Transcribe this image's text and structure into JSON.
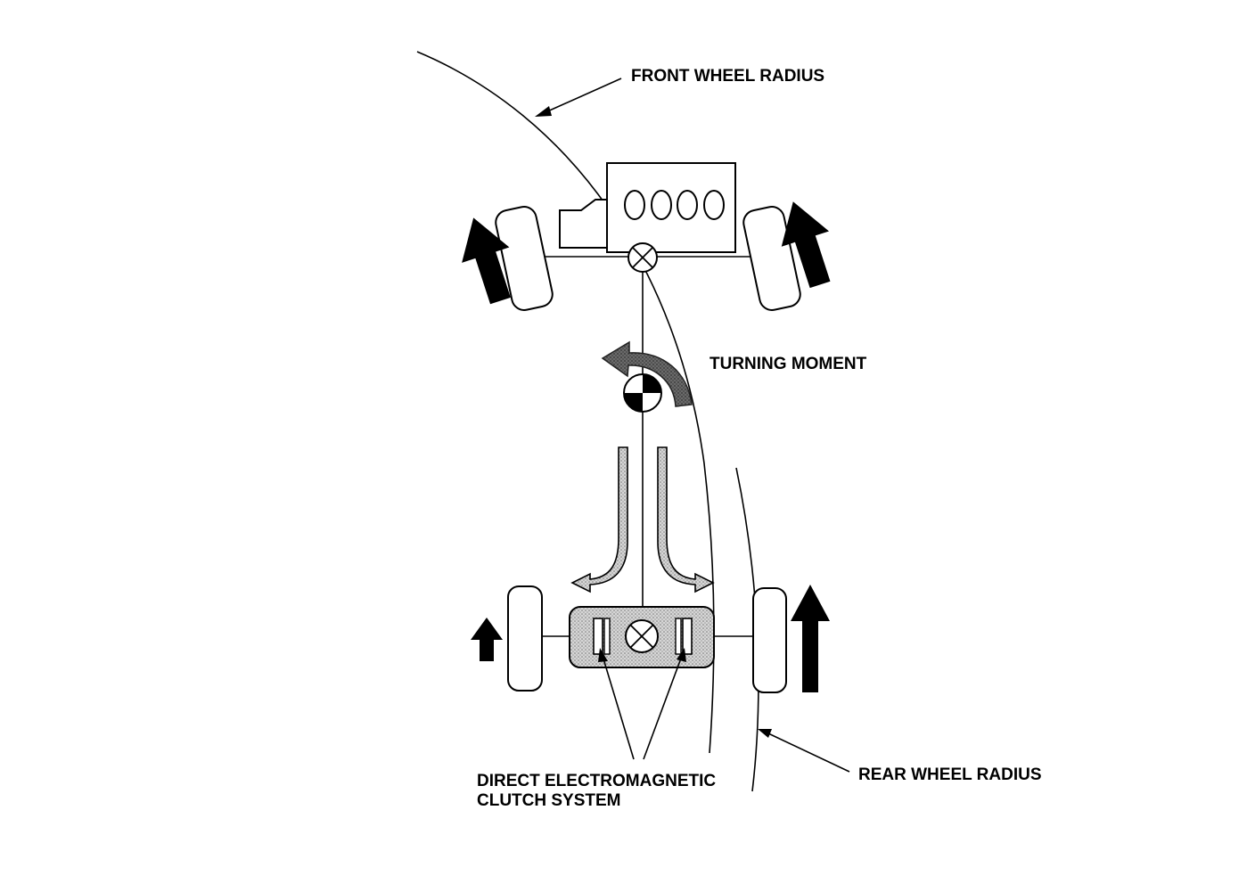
{
  "labels": {
    "front_wheel_radius": "FRONT WHEEL RADIUS",
    "turning_moment": "TURNING MOMENT",
    "rear_wheel_radius": "REAR WHEEL RADIUS",
    "clutch_line1": "DIRECT ELECTROMAGNETIC",
    "clutch_line2": "CLUTCH SYSTEM"
  },
  "colors": {
    "ink": "#000000",
    "background": "#ffffff",
    "turning_moment_arrow": "#555555",
    "clutch_unit_fill": "#c8c8c8"
  }
}
